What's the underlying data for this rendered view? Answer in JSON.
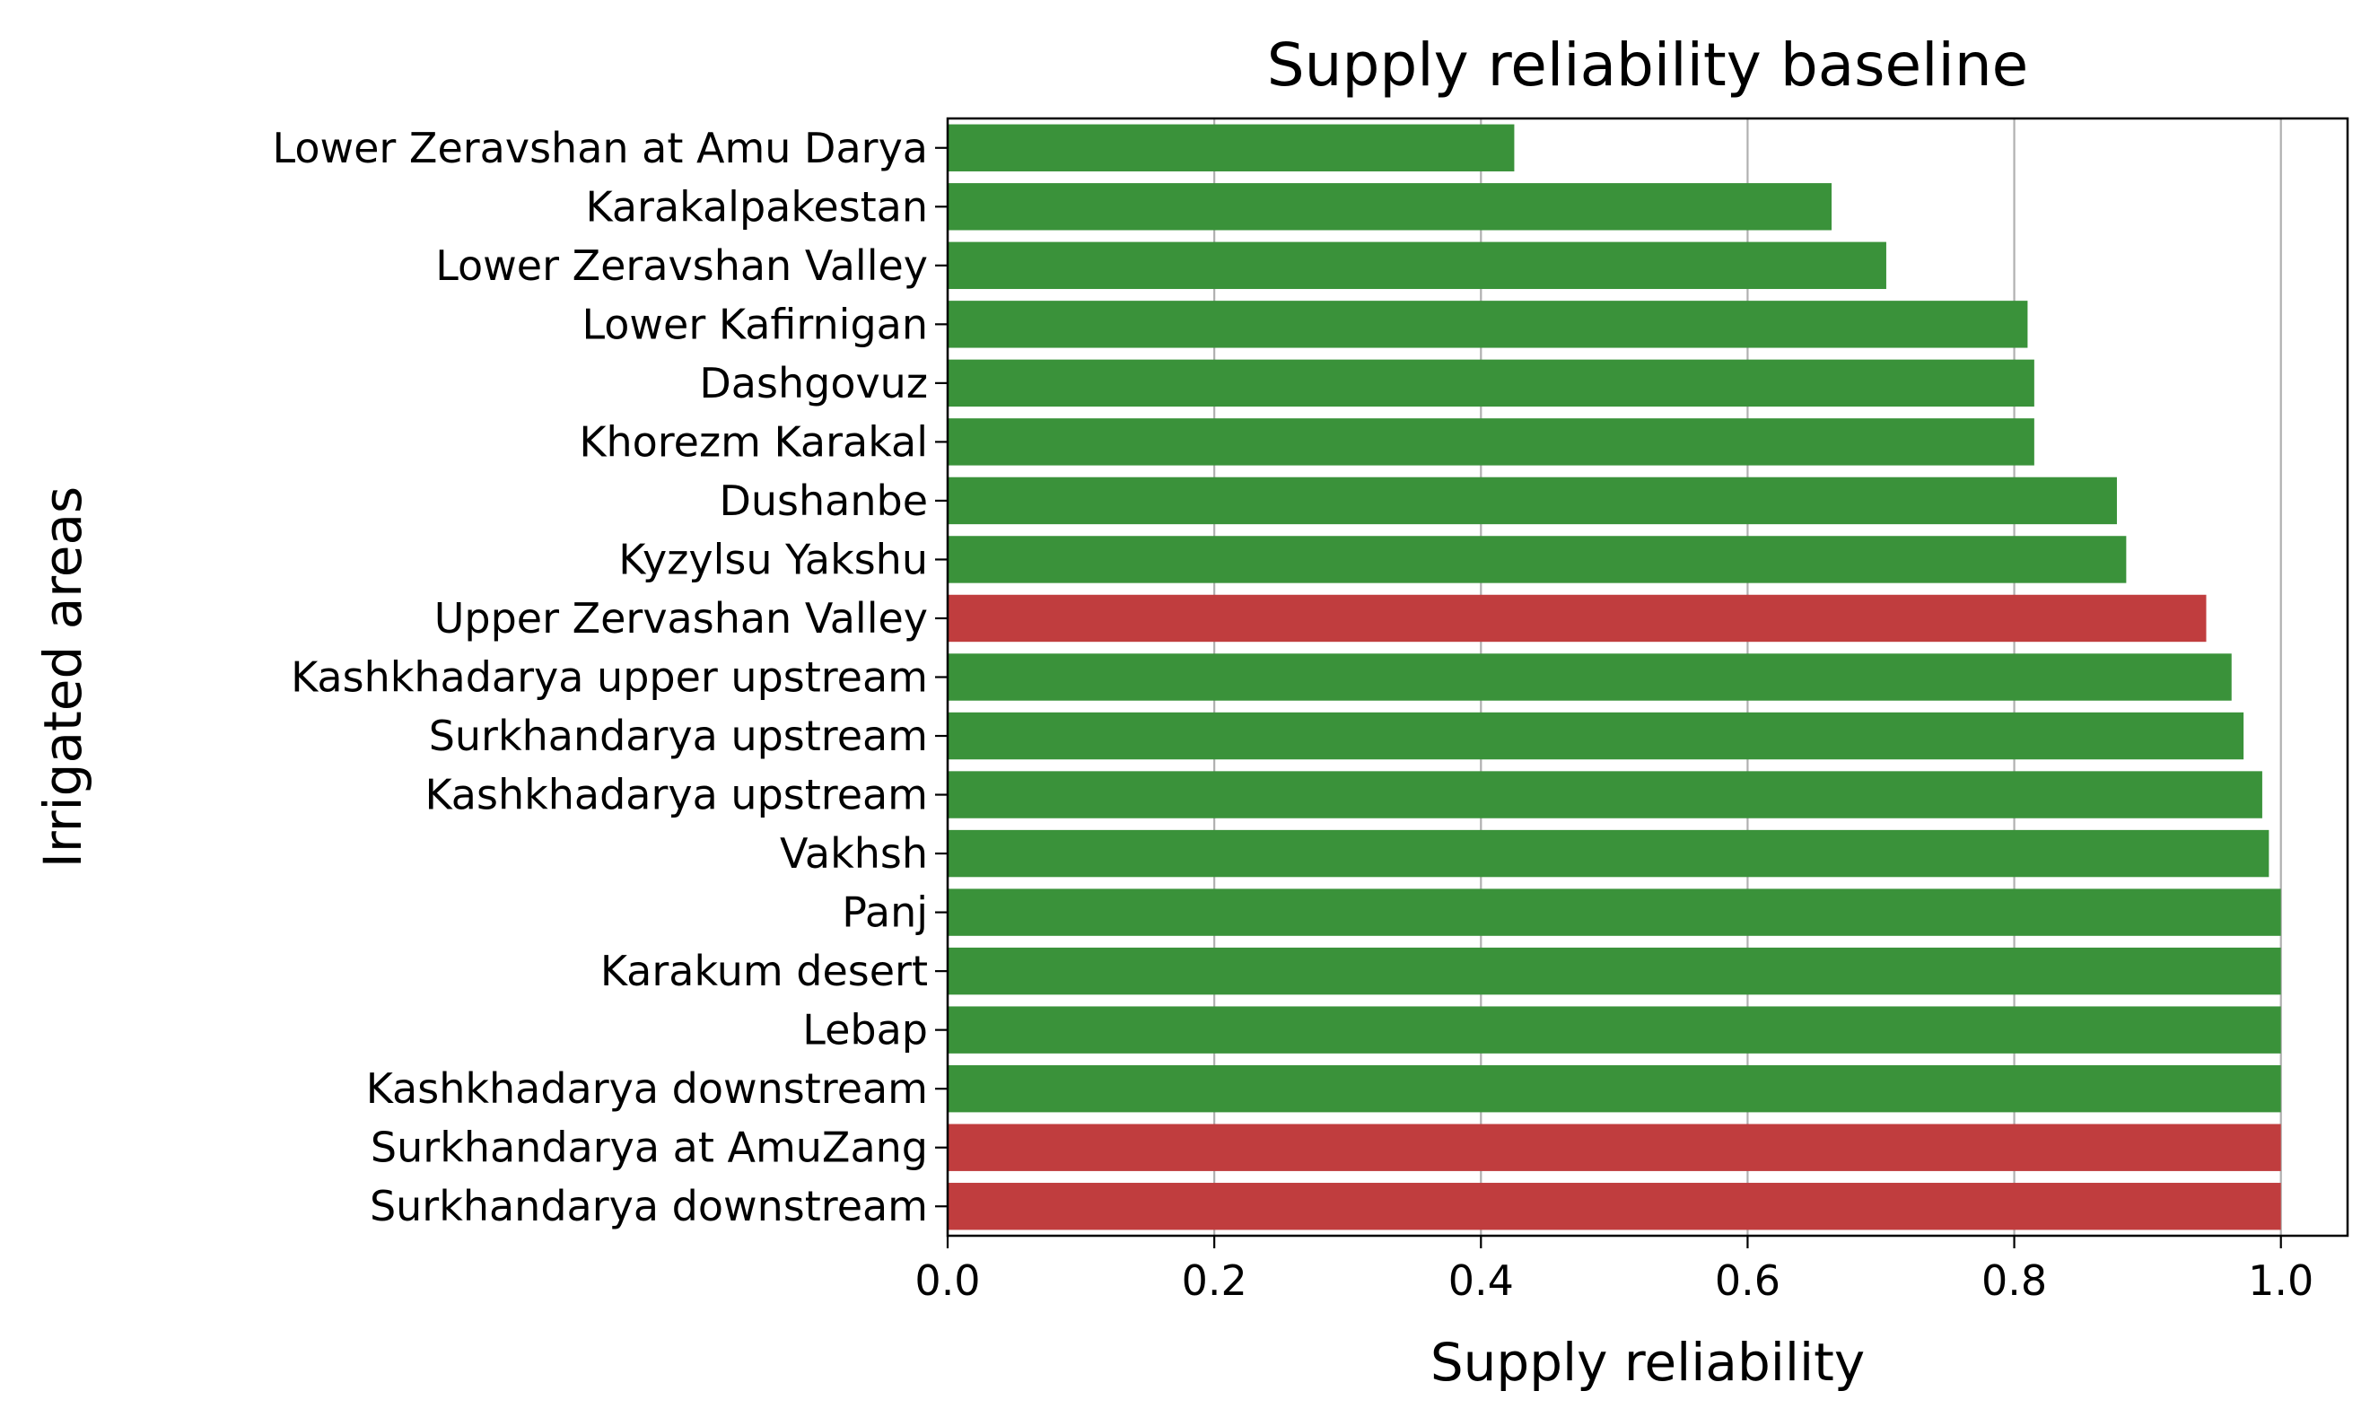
{
  "chart_data": {
    "type": "bar",
    "orientation": "horizontal",
    "title": "Supply reliability baseline",
    "xlabel": "Supply reliability",
    "ylabel": "Irrigated areas",
    "xlim": [
      0,
      1.05
    ],
    "xticks": [
      0.0,
      0.2,
      0.4,
      0.6,
      0.8,
      1.0
    ],
    "xtick_labels": [
      "0.0",
      "0.2",
      "0.4",
      "0.6",
      "0.8",
      "1.0"
    ],
    "grid": "vertical",
    "categories": [
      "Lower Zeravshan at Amu Darya",
      "Karakalpakestan",
      "Lower Zeravshan Valley",
      "Lower Kafirnigan",
      "Dashgovuz",
      "Khorezm Karakal",
      "Dushanbe",
      "Kyzylsu Yakshu",
      "Upper Zervashan Valley",
      "Kashkhadarya upper upstream",
      "Surkhandarya upstream",
      "Kashkhadarya upstream",
      "Vakhsh",
      "Panj",
      "Karakum desert",
      "Lebap",
      "Kashkhadarya downstream",
      "Surkhandarya at AmuZang",
      "Surkhandarya downstream"
    ],
    "values": [
      0.425,
      0.663,
      0.704,
      0.81,
      0.815,
      0.815,
      0.877,
      0.884,
      0.944,
      0.963,
      0.972,
      0.986,
      0.991,
      1.0,
      1.0,
      1.0,
      1.0,
      1.0,
      1.0
    ],
    "bar_colors": [
      "#3a923a",
      "#3a923a",
      "#3a923a",
      "#3a923a",
      "#3a923a",
      "#3a923a",
      "#3a923a",
      "#3a923a",
      "#c03d3e",
      "#3a923a",
      "#3a923a",
      "#3a923a",
      "#3a923a",
      "#3a923a",
      "#3a923a",
      "#3a923a",
      "#3a923a",
      "#c03d3e",
      "#c03d3e"
    ],
    "grid_color": "#b0b0b0"
  }
}
